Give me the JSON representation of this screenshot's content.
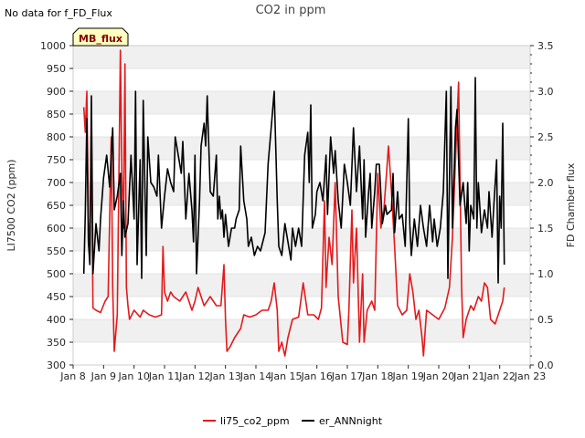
{
  "chart_data": {
    "type": "line",
    "title": "CO2 in ppm",
    "note": "No data for f_FD_Flux",
    "badge": "MB_flux",
    "ylabel": "LI7500 CO2 (ppm)",
    "y2label": "FD Chamber flux",
    "xlabel": "",
    "x_ticks": [
      "Jan 8",
      "Jan 9",
      "Jan 10",
      "Jan 11",
      "Jan 12",
      "Jan 13",
      "Jan 14",
      "Jan 15",
      "Jan 16",
      "Jan 17",
      "Jan 18",
      "Jan 19",
      "Jan 20",
      "Jan 21",
      "Jan 22",
      "Jan 23"
    ],
    "xlim": [
      8,
      23
    ],
    "ylim": [
      300,
      1000
    ],
    "y_ticks": [
      300,
      350,
      400,
      450,
      500,
      550,
      600,
      650,
      700,
      750,
      800,
      850,
      900,
      950,
      1000
    ],
    "y2lim": [
      0,
      3.5
    ],
    "y2_ticks": [
      "0.0",
      "0.5",
      "1.0",
      "1.5",
      "2.0",
      "2.5",
      "3.0",
      "3.5"
    ],
    "grid": "horizontal bands",
    "legend_position": "bottom-center",
    "series": [
      {
        "name": "li75_co2_ppm",
        "axis": "left",
        "color": "#e31a1c",
        "points": [
          [
            8.35,
            865
          ],
          [
            8.4,
            810
          ],
          [
            8.45,
            900
          ],
          [
            8.5,
            620
          ],
          [
            8.55,
            540
          ],
          [
            8.6,
            820
          ],
          [
            8.65,
            425
          ],
          [
            8.75,
            420
          ],
          [
            8.9,
            415
          ],
          [
            9.05,
            440
          ],
          [
            9.15,
            450
          ],
          [
            9.25,
            800
          ],
          [
            9.3,
            470
          ],
          [
            9.35,
            330
          ],
          [
            9.45,
            410
          ],
          [
            9.55,
            990
          ],
          [
            9.6,
            720
          ],
          [
            9.65,
            600
          ],
          [
            9.7,
            960
          ],
          [
            9.75,
            470
          ],
          [
            9.8,
            430
          ],
          [
            9.85,
            400
          ],
          [
            10.0,
            420
          ],
          [
            10.2,
            405
          ],
          [
            10.3,
            420
          ],
          [
            10.5,
            410
          ],
          [
            10.7,
            405
          ],
          [
            10.9,
            410
          ],
          [
            10.95,
            560
          ],
          [
            11.0,
            460
          ],
          [
            11.1,
            440
          ],
          [
            11.2,
            460
          ],
          [
            11.3,
            450
          ],
          [
            11.5,
            440
          ],
          [
            11.7,
            460
          ],
          [
            11.9,
            420
          ],
          [
            12.0,
            440
          ],
          [
            12.1,
            470
          ],
          [
            12.2,
            450
          ],
          [
            12.3,
            430
          ],
          [
            12.5,
            450
          ],
          [
            12.7,
            430
          ],
          [
            12.85,
            430
          ],
          [
            12.95,
            520
          ],
          [
            13.0,
            400
          ],
          [
            13.05,
            330
          ],
          [
            13.15,
            340
          ],
          [
            13.3,
            360
          ],
          [
            13.5,
            380
          ],
          [
            13.6,
            410
          ],
          [
            13.8,
            405
          ],
          [
            14.0,
            410
          ],
          [
            14.2,
            420
          ],
          [
            14.4,
            420
          ],
          [
            14.5,
            440
          ],
          [
            14.6,
            480
          ],
          [
            14.7,
            420
          ],
          [
            14.75,
            330
          ],
          [
            14.85,
            350
          ],
          [
            14.95,
            320
          ],
          [
            15.05,
            360
          ],
          [
            15.2,
            400
          ],
          [
            15.4,
            405
          ],
          [
            15.55,
            480
          ],
          [
            15.7,
            410
          ],
          [
            15.9,
            410
          ],
          [
            16.05,
            400
          ],
          [
            16.15,
            425
          ],
          [
            16.25,
            660
          ],
          [
            16.3,
            470
          ],
          [
            16.4,
            580
          ],
          [
            16.5,
            520
          ],
          [
            16.6,
            700
          ],
          [
            16.7,
            450
          ],
          [
            16.85,
            350
          ],
          [
            17.0,
            345
          ],
          [
            17.05,
            420
          ],
          [
            17.15,
            640
          ],
          [
            17.2,
            480
          ],
          [
            17.3,
            600
          ],
          [
            17.4,
            350
          ],
          [
            17.5,
            500
          ],
          [
            17.55,
            350
          ],
          [
            17.65,
            420
          ],
          [
            17.8,
            440
          ],
          [
            17.9,
            420
          ],
          [
            18.0,
            720
          ],
          [
            18.1,
            600
          ],
          [
            18.2,
            640
          ],
          [
            18.35,
            780
          ],
          [
            18.45,
            680
          ],
          [
            18.55,
            560
          ],
          [
            18.65,
            430
          ],
          [
            18.8,
            410
          ],
          [
            18.95,
            420
          ],
          [
            19.05,
            500
          ],
          [
            19.15,
            460
          ],
          [
            19.25,
            400
          ],
          [
            19.35,
            420
          ],
          [
            19.45,
            360
          ],
          [
            19.5,
            320
          ],
          [
            19.6,
            420
          ],
          [
            19.8,
            410
          ],
          [
            20.0,
            400
          ],
          [
            20.2,
            425
          ],
          [
            20.35,
            470
          ],
          [
            20.45,
            580
          ],
          [
            20.55,
            750
          ],
          [
            20.65,
            920
          ],
          [
            20.75,
            470
          ],
          [
            20.8,
            360
          ],
          [
            20.9,
            400
          ],
          [
            21.05,
            430
          ],
          [
            21.15,
            420
          ],
          [
            21.3,
            450
          ],
          [
            21.4,
            440
          ],
          [
            21.5,
            480
          ],
          [
            21.6,
            470
          ],
          [
            21.7,
            400
          ],
          [
            21.85,
            390
          ],
          [
            22.0,
            420
          ],
          [
            22.1,
            440
          ],
          [
            22.15,
            470
          ]
        ]
      },
      {
        "name": "er_ANNnight",
        "axis": "right",
        "color": "#000000",
        "points": [
          [
            8.35,
            1.0
          ],
          [
            8.4,
            1.65
          ],
          [
            8.45,
            2.7
          ],
          [
            8.5,
            1.35
          ],
          [
            8.55,
            1.1
          ],
          [
            8.6,
            2.95
          ],
          [
            8.65,
            1.0
          ],
          [
            8.75,
            1.55
          ],
          [
            8.85,
            1.25
          ],
          [
            8.9,
            1.6
          ],
          [
            9.0,
            2.05
          ],
          [
            9.1,
            2.3
          ],
          [
            9.2,
            1.95
          ],
          [
            9.3,
            2.6
          ],
          [
            9.35,
            1.7
          ],
          [
            9.45,
            1.85
          ],
          [
            9.55,
            2.1
          ],
          [
            9.6,
            1.2
          ],
          [
            9.65,
            1.8
          ],
          [
            9.7,
            1.4
          ],
          [
            9.8,
            1.55
          ],
          [
            9.9,
            2.3
          ],
          [
            10.0,
            1.6
          ],
          [
            10.05,
            3.0
          ],
          [
            10.1,
            1.1
          ],
          [
            10.2,
            2.25
          ],
          [
            10.25,
            0.95
          ],
          [
            10.3,
            2.9
          ],
          [
            10.4,
            1.2
          ],
          [
            10.45,
            2.5
          ],
          [
            10.55,
            2.0
          ],
          [
            10.65,
            1.95
          ],
          [
            10.75,
            1.85
          ],
          [
            10.8,
            2.3
          ],
          [
            10.9,
            1.5
          ],
          [
            11.0,
            1.85
          ],
          [
            11.1,
            2.15
          ],
          [
            11.2,
            2.0
          ],
          [
            11.3,
            1.9
          ],
          [
            11.35,
            2.5
          ],
          [
            11.45,
            2.3
          ],
          [
            11.55,
            2.1
          ],
          [
            11.6,
            2.45
          ],
          [
            11.7,
            1.6
          ],
          [
            11.8,
            2.1
          ],
          [
            11.9,
            1.7
          ],
          [
            11.95,
            1.35
          ],
          [
            12.0,
            2.3
          ],
          [
            12.05,
            1.0
          ],
          [
            12.15,
            1.8
          ],
          [
            12.2,
            2.4
          ],
          [
            12.3,
            2.65
          ],
          [
            12.35,
            2.4
          ],
          [
            12.4,
            2.95
          ],
          [
            12.5,
            1.9
          ],
          [
            12.6,
            1.85
          ],
          [
            12.7,
            2.3
          ],
          [
            12.75,
            1.6
          ],
          [
            12.8,
            1.85
          ],
          [
            12.85,
            1.6
          ],
          [
            12.9,
            1.7
          ],
          [
            12.95,
            1.4
          ],
          [
            13.0,
            1.65
          ],
          [
            13.1,
            1.3
          ],
          [
            13.2,
            1.5
          ],
          [
            13.3,
            1.5
          ],
          [
            13.35,
            1.6
          ],
          [
            13.45,
            1.7
          ],
          [
            13.5,
            2.4
          ],
          [
            13.6,
            1.8
          ],
          [
            13.7,
            1.6
          ],
          [
            13.75,
            1.3
          ],
          [
            13.85,
            1.4
          ],
          [
            13.95,
            1.2
          ],
          [
            14.05,
            1.3
          ],
          [
            14.15,
            1.25
          ],
          [
            14.3,
            1.45
          ],
          [
            14.4,
            2.2
          ],
          [
            14.5,
            2.6
          ],
          [
            14.6,
            3.0
          ],
          [
            14.7,
            1.8
          ],
          [
            14.75,
            1.3
          ],
          [
            14.85,
            1.2
          ],
          [
            14.95,
            1.55
          ],
          [
            15.05,
            1.35
          ],
          [
            15.15,
            1.15
          ],
          [
            15.2,
            1.5
          ],
          [
            15.3,
            1.3
          ],
          [
            15.4,
            1.5
          ],
          [
            15.5,
            1.3
          ],
          [
            15.6,
            2.3
          ],
          [
            15.7,
            2.55
          ],
          [
            15.75,
            2.0
          ],
          [
            15.8,
            2.85
          ],
          [
            15.85,
            1.5
          ],
          [
            15.95,
            1.65
          ],
          [
            16.0,
            1.9
          ],
          [
            16.1,
            2.0
          ],
          [
            16.2,
            1.8
          ],
          [
            16.3,
            2.3
          ],
          [
            16.35,
            1.65
          ],
          [
            16.45,
            2.5
          ],
          [
            16.55,
            2.1
          ],
          [
            16.6,
            2.35
          ],
          [
            16.7,
            1.8
          ],
          [
            16.8,
            1.5
          ],
          [
            16.9,
            2.2
          ],
          [
            17.0,
            2.0
          ],
          [
            17.1,
            1.75
          ],
          [
            17.2,
            2.6
          ],
          [
            17.3,
            1.9
          ],
          [
            17.4,
            2.4
          ],
          [
            17.5,
            1.6
          ],
          [
            17.55,
            2.25
          ],
          [
            17.6,
            1.4
          ],
          [
            17.7,
            1.9
          ],
          [
            17.75,
            2.1
          ],
          [
            17.8,
            1.5
          ],
          [
            17.9,
            1.9
          ],
          [
            17.95,
            2.2
          ],
          [
            18.05,
            2.2
          ],
          [
            18.15,
            1.55
          ],
          [
            18.25,
            1.75
          ],
          [
            18.3,
            1.65
          ],
          [
            18.45,
            1.7
          ],
          [
            18.5,
            2.1
          ],
          [
            18.55,
            1.45
          ],
          [
            18.65,
            1.9
          ],
          [
            18.7,
            1.6
          ],
          [
            18.8,
            1.65
          ],
          [
            18.9,
            1.3
          ],
          [
            19.0,
            2.7
          ],
          [
            19.05,
            1.55
          ],
          [
            19.1,
            1.2
          ],
          [
            19.2,
            1.6
          ],
          [
            19.3,
            1.3
          ],
          [
            19.4,
            1.75
          ],
          [
            19.5,
            1.5
          ],
          [
            19.6,
            1.3
          ],
          [
            19.7,
            1.75
          ],
          [
            19.8,
            1.35
          ],
          [
            19.85,
            1.6
          ],
          [
            19.95,
            1.3
          ],
          [
            20.05,
            1.5
          ],
          [
            20.15,
            1.9
          ],
          [
            20.25,
            3.0
          ],
          [
            20.3,
            0.95
          ],
          [
            20.4,
            3.05
          ],
          [
            20.45,
            1.5
          ],
          [
            20.55,
            2.6
          ],
          [
            20.6,
            2.8
          ],
          [
            20.7,
            1.75
          ],
          [
            20.8,
            2.0
          ],
          [
            20.9,
            1.55
          ],
          [
            20.95,
            2.0
          ],
          [
            21.0,
            1.25
          ],
          [
            21.05,
            1.75
          ],
          [
            21.15,
            1.6
          ],
          [
            21.2,
            3.15
          ],
          [
            21.25,
            1.5
          ],
          [
            21.3,
            2.0
          ],
          [
            21.4,
            1.45
          ],
          [
            21.5,
            1.7
          ],
          [
            21.6,
            1.5
          ],
          [
            21.65,
            1.9
          ],
          [
            21.75,
            1.4
          ],
          [
            21.8,
            1.7
          ],
          [
            21.9,
            2.25
          ],
          [
            21.95,
            0.9
          ],
          [
            22.0,
            1.85
          ],
          [
            22.05,
            1.5
          ],
          [
            22.1,
            2.65
          ],
          [
            22.15,
            1.1
          ]
        ]
      }
    ]
  }
}
